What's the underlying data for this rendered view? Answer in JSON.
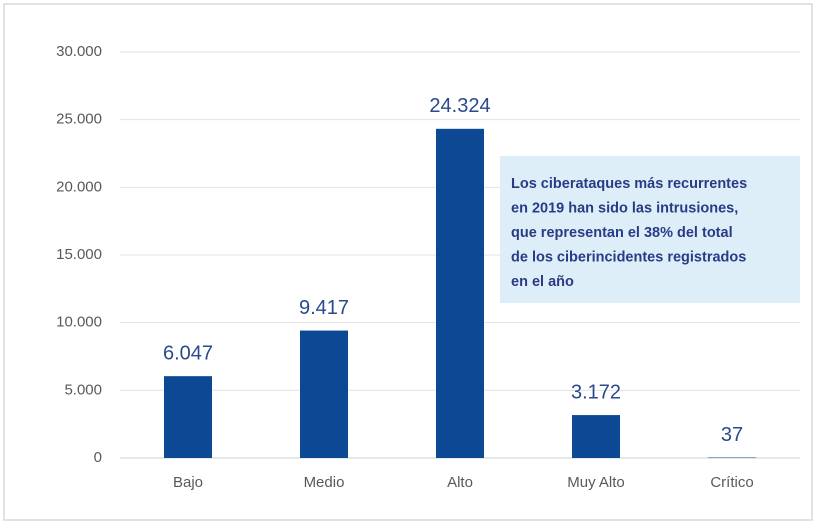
{
  "chart_data": {
    "type": "bar",
    "categories": [
      "Bajo",
      "Medio",
      "Alto",
      "Muy Alto",
      "Crítico"
    ],
    "values": [
      6047,
      9417,
      24324,
      3172,
      37
    ],
    "value_labels": [
      "6.047",
      "9.417",
      "24.324",
      "3.172",
      "37"
    ],
    "color": "#0c4893",
    "ylim": [
      0,
      30000
    ],
    "yticks": [
      0,
      {
        "value": 5000,
        "label": "5.000"
      },
      {
        "value": 10000,
        "label": "10.000"
      },
      {
        "value": 15000,
        "label": "15.000"
      },
      {
        "value": 20000,
        "label": "20.000"
      },
      {
        "value": 25000,
        "label": "25.000"
      },
      {
        "value": 30000,
        "label": "30.000"
      }
    ],
    "grid": true,
    "annotation": [
      "Los ciberataques más recurrentes",
      "en 2019 han sido las intrusiones,",
      "que representan el 38% del total",
      "de los ciberincidentes registrados",
      "en el año"
    ]
  }
}
